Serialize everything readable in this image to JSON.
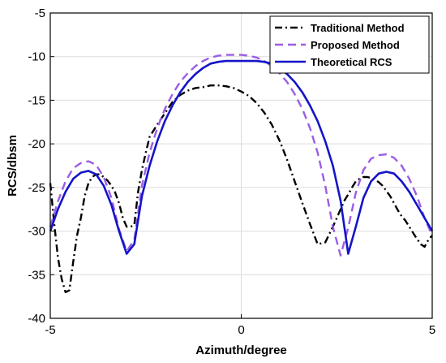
{
  "chart_data": {
    "type": "line",
    "xlabel": "Azimuth/degree",
    "ylabel": "RCS/dbsm",
    "xlim": [
      -5,
      5
    ],
    "ylim": [
      -40,
      -5
    ],
    "xticks": [
      -5,
      0,
      5
    ],
    "yticks": [
      -40,
      -35,
      -30,
      -25,
      -20,
      -15,
      -10,
      -5
    ],
    "grid": true,
    "legend_position": "top-right",
    "series": [
      {
        "name": "Traditional Method",
        "color": "#000000",
        "style": "dashdot",
        "x": [
          -5,
          -4.9,
          -4.8,
          -4.7,
          -4.6,
          -4.5,
          -4.4,
          -4.3,
          -4.2,
          -4.1,
          -4.0,
          -3.9,
          -3.8,
          -3.7,
          -3.6,
          -3.5,
          -3.4,
          -3.3,
          -3.2,
          -3.1,
          -3.0,
          -2.9,
          -2.8,
          -2.7,
          -2.6,
          -2.5,
          -2.4,
          -2.2,
          -2.0,
          -1.8,
          -1.6,
          -1.4,
          -1.2,
          -1.0,
          -0.8,
          -0.6,
          -0.4,
          -0.2,
          0.0,
          0.2,
          0.4,
          0.6,
          0.8,
          1.0,
          1.2,
          1.4,
          1.6,
          1.8,
          2.0,
          2.2,
          2.4,
          2.5,
          2.6,
          2.7,
          2.8,
          2.9,
          3.0,
          3.1,
          3.2,
          3.3,
          3.4,
          3.5,
          3.6,
          3.7,
          3.8,
          3.9,
          4.0,
          4.1,
          4.2,
          4.3,
          4.4,
          4.5,
          4.6,
          4.7,
          4.8,
          4.9,
          5.0
        ],
        "y": [
          -24.5,
          -29.0,
          -33.0,
          -35.5,
          -37.0,
          -36.8,
          -33.5,
          -30.5,
          -28.5,
          -26.0,
          -24.5,
          -23.8,
          -23.5,
          -23.5,
          -23.8,
          -24.2,
          -24.8,
          -25.6,
          -26.8,
          -28.5,
          -29.5,
          -29.5,
          -29.3,
          -25.5,
          -23.0,
          -21.0,
          -19.2,
          -17.8,
          -16.5,
          -15.2,
          -14.4,
          -13.9,
          -13.6,
          -13.5,
          -13.3,
          -13.3,
          -13.4,
          -13.6,
          -14.0,
          -14.5,
          -15.3,
          -16.4,
          -17.8,
          -19.6,
          -21.8,
          -24.3,
          -26.8,
          -29.2,
          -31.5,
          -31.3,
          -29.5,
          -28.5,
          -27.5,
          -26.5,
          -25.8,
          -25.0,
          -24.3,
          -24.0,
          -23.8,
          -23.8,
          -23.9,
          -24.1,
          -24.4,
          -24.8,
          -25.4,
          -26.0,
          -26.8,
          -27.6,
          -28.3,
          -28.8,
          -29.5,
          -30.2,
          -30.9,
          -31.5,
          -31.8,
          -31.0,
          -30.5
        ]
      },
      {
        "name": "Proposed Method",
        "color": "#9b5de5",
        "style": "dashed",
        "x": [
          -5,
          -4.8,
          -4.6,
          -4.4,
          -4.2,
          -4.0,
          -3.8,
          -3.6,
          -3.4,
          -3.2,
          -3.0,
          -2.8,
          -2.6,
          -2.4,
          -2.2,
          -2.0,
          -1.8,
          -1.6,
          -1.4,
          -1.2,
          -1.0,
          -0.8,
          -0.6,
          -0.4,
          -0.2,
          0.0,
          0.2,
          0.4,
          0.6,
          0.8,
          1.0,
          1.2,
          1.4,
          1.6,
          1.8,
          2.0,
          2.2,
          2.4,
          2.6,
          2.8,
          3.0,
          3.2,
          3.4,
          3.6,
          3.8,
          4.0,
          4.2,
          4.4,
          4.6,
          4.8,
          5.0
        ],
        "y": [
          -29.5,
          -26.6,
          -24.3,
          -22.8,
          -22.2,
          -22.0,
          -22.4,
          -23.8,
          -26.2,
          -29.8,
          -32.3,
          -31.0,
          -24.8,
          -21.0,
          -18.2,
          -16.0,
          -14.3,
          -12.9,
          -11.9,
          -11.1,
          -10.5,
          -10.1,
          -9.9,
          -9.8,
          -9.8,
          -9.8,
          -9.9,
          -10.1,
          -10.5,
          -11.1,
          -11.9,
          -12.9,
          -14.3,
          -16.0,
          -18.2,
          -21.0,
          -24.8,
          -29.5,
          -32.8,
          -29.6,
          -25.6,
          -23.0,
          -21.7,
          -21.3,
          -21.2,
          -21.6,
          -22.5,
          -24.0,
          -26.0,
          -28.5,
          -30.5
        ]
      },
      {
        "name": "Theoretical RCS",
        "color": "#1414c8",
        "style": "solid",
        "x": [
          -5,
          -4.8,
          -4.6,
          -4.4,
          -4.2,
          -4.0,
          -3.8,
          -3.6,
          -3.4,
          -3.2,
          -3.0,
          -2.8,
          -2.6,
          -2.4,
          -2.2,
          -2.0,
          -1.8,
          -1.6,
          -1.4,
          -1.2,
          -1.0,
          -0.8,
          -0.6,
          -0.4,
          -0.2,
          0.0,
          0.2,
          0.4,
          0.6,
          0.8,
          1.0,
          1.2,
          1.4,
          1.6,
          1.8,
          2.0,
          2.2,
          2.4,
          2.6,
          2.8,
          3.0,
          3.2,
          3.4,
          3.6,
          3.8,
          4.0,
          4.2,
          4.4,
          4.6,
          4.8,
          5.0
        ],
        "y": [
          -30.0,
          -27.5,
          -25.5,
          -24.0,
          -23.3,
          -23.1,
          -23.5,
          -24.8,
          -27.0,
          -30.0,
          -32.6,
          -31.5,
          -26.0,
          -22.5,
          -19.7,
          -17.4,
          -15.6,
          -14.1,
          -12.9,
          -12.0,
          -11.3,
          -10.8,
          -10.6,
          -10.5,
          -10.5,
          -10.5,
          -10.5,
          -10.5,
          -10.6,
          -10.8,
          -11.3,
          -12.0,
          -12.9,
          -14.1,
          -15.6,
          -17.4,
          -19.7,
          -22.5,
          -26.5,
          -32.6,
          -29.5,
          -26.2,
          -24.3,
          -23.4,
          -23.2,
          -23.4,
          -24.3,
          -25.5,
          -27.0,
          -28.5,
          -30.0
        ]
      }
    ]
  }
}
